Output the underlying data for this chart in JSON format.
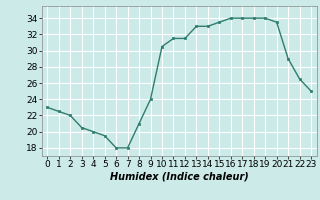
{
  "x": [
    0,
    1,
    2,
    3,
    4,
    5,
    6,
    7,
    8,
    9,
    10,
    11,
    12,
    13,
    14,
    15,
    16,
    17,
    18,
    19,
    20,
    21,
    22,
    23
  ],
  "y": [
    23,
    22.5,
    22,
    20.5,
    20,
    19.5,
    18,
    18,
    21,
    24,
    30.5,
    31.5,
    31.5,
    33,
    33,
    33.5,
    34,
    34,
    34,
    34,
    33.5,
    29,
    26.5,
    25
  ],
  "xlabel": "Humidex (Indice chaleur)",
  "ylim": [
    17,
    35.5
  ],
  "xlim": [
    -0.5,
    23.5
  ],
  "yticks": [
    18,
    20,
    22,
    24,
    26,
    28,
    30,
    32,
    34
  ],
  "xticks": [
    0,
    1,
    2,
    3,
    4,
    5,
    6,
    7,
    8,
    9,
    10,
    11,
    12,
    13,
    14,
    15,
    16,
    17,
    18,
    19,
    20,
    21,
    22,
    23
  ],
  "line_color": "#2e7d6e",
  "marker_color": "#2e7d6e",
  "bg_color": "#cceae8",
  "grid_color": "#ffffff",
  "label_fontsize": 7,
  "tick_fontsize": 6.5
}
